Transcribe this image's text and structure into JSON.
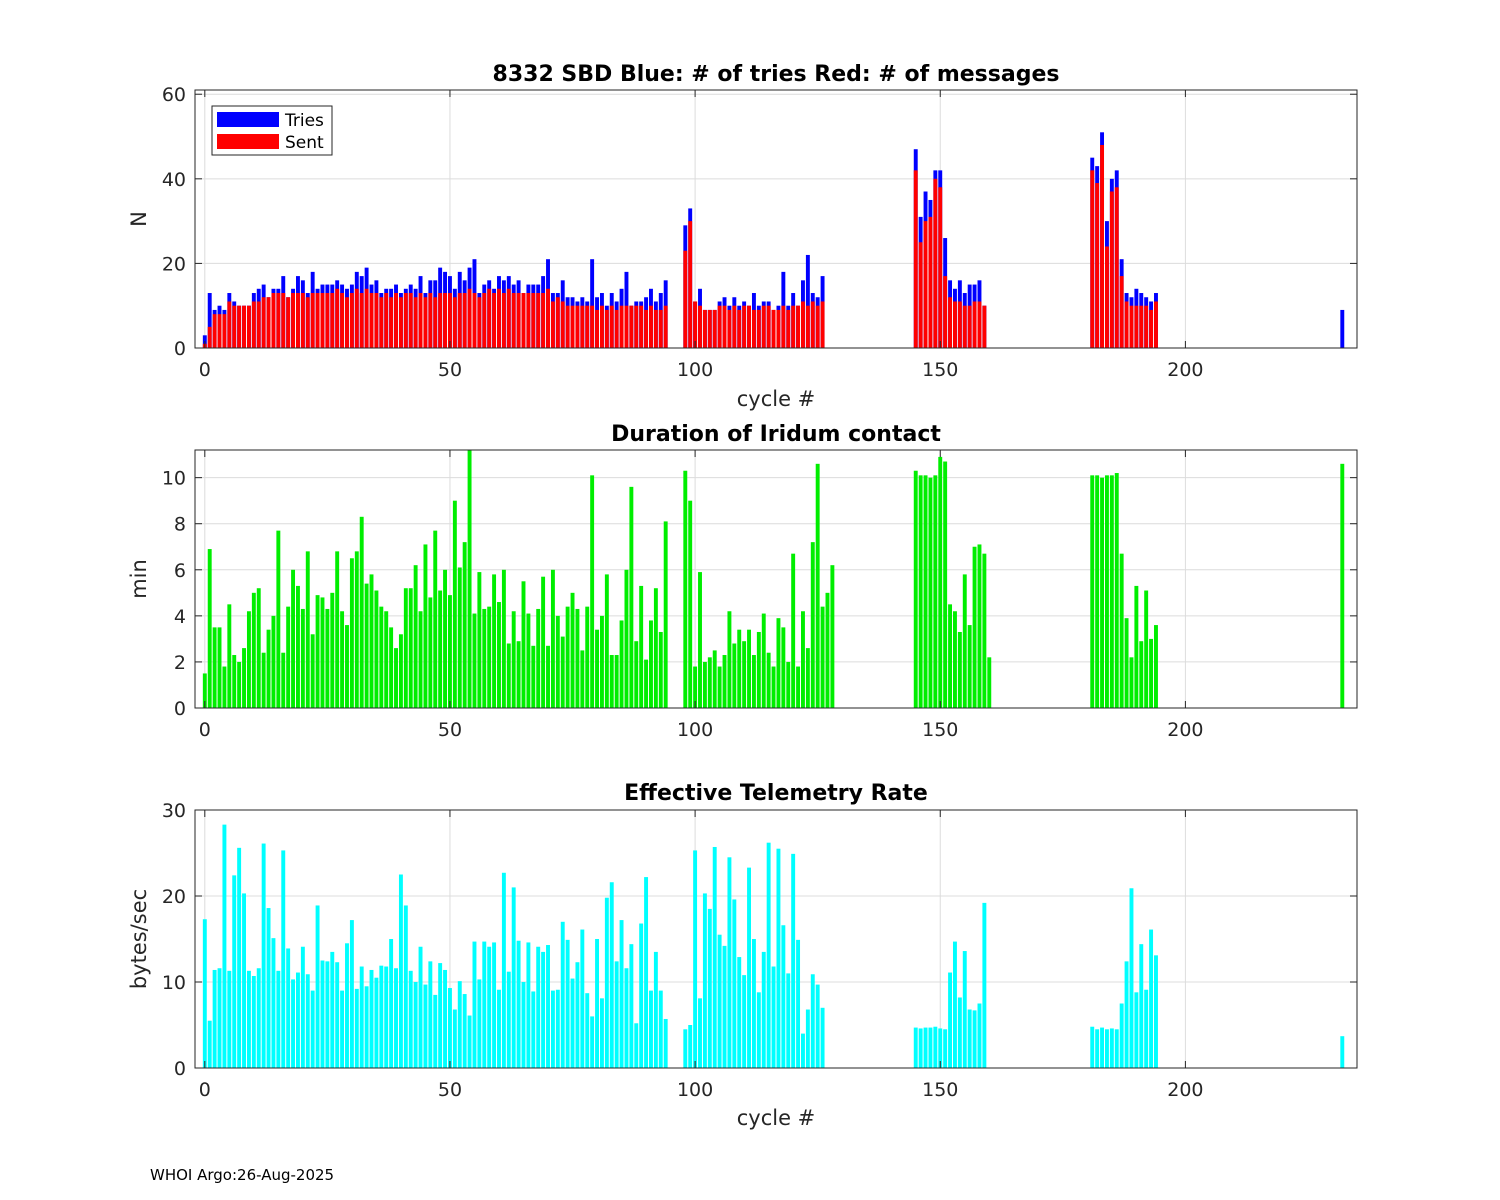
{
  "footer": "WHOI Argo:26-Aug-2025",
  "colors": {
    "tries": "#0000ff",
    "sent": "#ff0000",
    "duration": "#00ee00",
    "rate": "#00ffff",
    "grid": "#dcdcdc"
  },
  "chart_data": [
    {
      "type": "bar",
      "stacked": true,
      "title": "8332 SBD  Blue: # of tries   Red: # of messages",
      "xlabel": "cycle #",
      "ylabel": "N",
      "xlim": [
        -2,
        235
      ],
      "ylim": [
        0,
        61
      ],
      "xticks": [
        0,
        50,
        100,
        150,
        200
      ],
      "yticks": [
        0,
        20,
        40,
        60
      ],
      "grid": true,
      "legend": {
        "placement": "top-left",
        "entries": [
          "Tries",
          "Sent"
        ]
      },
      "series": [
        {
          "name": "Tries",
          "segments": [
            {
              "start": 0,
              "values": [
                3,
                13,
                9,
                10,
                9,
                13,
                11,
                10,
                10,
                10,
                13,
                14,
                15,
                12,
                14,
                14,
                17,
                12,
                14,
                17,
                16,
                13,
                18,
                14,
                15,
                15,
                15,
                16,
                15,
                14,
                15,
                18,
                17,
                19,
                15,
                16,
                13,
                14,
                14,
                15,
                13,
                14,
                15,
                14,
                17,
                13,
                16,
                16,
                19,
                18,
                17,
                14,
                18,
                16,
                19,
                21,
                13,
                15,
                16,
                14,
                17,
                16,
                17,
                15,
                16,
                13,
                15,
                15,
                15,
                17,
                21,
                13,
                13,
                16,
                12,
                12,
                11,
                12,
                11,
                21,
                12,
                13,
                10,
                13,
                11,
                14,
                18,
                10,
                11,
                11,
                12,
                14,
                11,
                13,
                16
              ]
            },
            {
              "start": 98,
              "values": [
                29,
                33,
                11,
                14,
                9,
                9,
                9,
                11,
                12,
                10,
                12,
                10,
                11,
                10,
                13,
                10,
                11,
                11,
                9,
                10,
                18,
                10,
                13,
                10,
                16,
                22,
                13,
                12,
                17
              ]
            },
            {
              "start": 145,
              "values": [
                47,
                31,
                37,
                35,
                42,
                42,
                26,
                16,
                14,
                16,
                13,
                15,
                15,
                16,
                10
              ]
            },
            {
              "start": 181,
              "values": [
                45,
                43,
                51,
                30,
                40,
                42,
                21,
                13,
                12,
                14,
                13,
                12,
                11,
                13
              ]
            },
            {
              "start": 232,
              "values": [
                9
              ]
            }
          ]
        },
        {
          "name": "Sent",
          "segments": [
            {
              "start": 0,
              "values": [
                1,
                5,
                8,
                8,
                8,
                11,
                10,
                10,
                10,
                10,
                11,
                11,
                12,
                12,
                13,
                13,
                13,
                12,
                13,
                13,
                13,
                12,
                13,
                13,
                13,
                13,
                13,
                14,
                13,
                12,
                13,
                14,
                13,
                14,
                13,
                13,
                12,
                13,
                12,
                13,
                12,
                13,
                13,
                12,
                13,
                12,
                13,
                12,
                13,
                13,
                13,
                12,
                13,
                13,
                14,
                13,
                12,
                13,
                14,
                13,
                14,
                13,
                14,
                13,
                13,
                13,
                13,
                13,
                13,
                13,
                14,
                11,
                12,
                11,
                10,
                10,
                10,
                10,
                10,
                10,
                9,
                10,
                9,
                10,
                9,
                10,
                10,
                10,
                10,
                10,
                9,
                10,
                9,
                9,
                10
              ]
            },
            {
              "start": 98,
              "values": [
                23,
                30,
                11,
                10,
                9,
                9,
                9,
                10,
                10,
                9,
                10,
                9,
                10,
                10,
                9,
                9,
                10,
                10,
                9,
                9,
                10,
                9,
                10,
                10,
                11,
                10,
                11,
                10,
                11
              ]
            },
            {
              "start": 145,
              "values": [
                42,
                25,
                30,
                31,
                40,
                38,
                17,
                12,
                11,
                11,
                10,
                10,
                11,
                11,
                10
              ]
            },
            {
              "start": 181,
              "values": [
                42,
                39,
                48,
                24,
                37,
                38,
                17,
                11,
                10,
                10,
                10,
                10,
                9,
                11
              ]
            },
            {
              "start": 232,
              "values": [
                0
              ]
            }
          ]
        }
      ]
    },
    {
      "type": "bar",
      "title": "Duration of Iridum contact",
      "xlabel": "",
      "ylabel": "min",
      "xlim": [
        -2,
        235
      ],
      "ylim": [
        0,
        11.2
      ],
      "xticks": [
        0,
        50,
        100,
        150,
        200
      ],
      "yticks": [
        0,
        2,
        4,
        6,
        8,
        10
      ],
      "grid": true,
      "series": [
        {
          "name": "",
          "segments": [
            {
              "start": 0,
              "values": [
                1.5,
                6.9,
                3.5,
                3.5,
                1.8,
                4.5,
                2.3,
                2.0,
                2.6,
                4.2,
                5.0,
                5.2,
                2.4,
                3.4,
                4.0,
                7.7,
                2.4,
                4.4,
                6.0,
                5.3,
                4.3,
                6.8,
                3.2,
                4.9,
                4.8,
                4.3,
                5.0,
                6.8,
                4.2,
                3.6,
                6.5,
                6.8,
                8.3,
                5.4,
                5.8,
                5.1,
                4.4,
                4.2,
                3.5,
                2.6,
                3.2,
                5.2,
                5.2,
                6.2,
                4.2,
                7.1,
                4.8,
                7.7,
                5.1,
                6.0,
                4.9,
                9.0,
                6.1,
                7.2,
                11.2,
                4.1,
                5.9,
                4.3,
                4.4,
                5.8,
                4.6,
                6.0,
                2.8,
                4.2,
                2.9,
                5.5,
                4.1,
                2.7,
                4.3,
                5.7,
                2.7,
                6.0,
                4.0,
                3.1,
                4.4,
                5.0,
                4.3,
                2.5,
                4.4,
                10.1,
                3.4,
                4.0,
                5.8,
                2.3,
                2.3,
                3.8,
                6.0,
                9.6,
                2.9,
                5.3,
                2.1,
                3.8,
                5.2,
                3.3,
                8.1
              ]
            },
            {
              "start": 98,
              "values": [
                10.3,
                9.0,
                1.8,
                5.9,
                2.0,
                2.2,
                2.5,
                1.8,
                2.3,
                4.2,
                2.8,
                3.4,
                2.9,
                3.4,
                2.3,
                3.3,
                4.1,
                2.4,
                1.8,
                3.9,
                3.5,
                2.0,
                6.7,
                1.8,
                4.2,
                2.6,
                7.2,
                10.6,
                4.4,
                5.0,
                6.2
              ]
            },
            {
              "start": 145,
              "values": [
                10.3,
                10.1,
                10.1,
                10.0,
                10.1,
                10.9,
                10.7,
                4.5,
                4.2,
                3.3,
                5.8,
                3.6,
                7.0,
                7.1,
                6.7,
                2.2
              ]
            },
            {
              "start": 181,
              "values": [
                10.1,
                10.1,
                10.0,
                10.1,
                10.1,
                10.2,
                6.7,
                3.9,
                2.2,
                5.3,
                2.9,
                5.1,
                3.0,
                3.6
              ]
            },
            {
              "start": 232,
              "values": [
                10.6
              ]
            }
          ]
        }
      ]
    },
    {
      "type": "bar",
      "title": "Effective Telemetry Rate",
      "xlabel": "cycle #",
      "ylabel": "bytes/sec",
      "xlim": [
        -2,
        235
      ],
      "ylim": [
        0,
        30
      ],
      "xticks": [
        0,
        50,
        100,
        150,
        200
      ],
      "yticks": [
        0,
        10,
        20,
        30
      ],
      "grid": true,
      "series": [
        {
          "name": "",
          "segments": [
            {
              "start": 0,
              "values": [
                17.3,
                5.5,
                11.4,
                11.6,
                28.3,
                11.3,
                22.4,
                25.6,
                20.3,
                11.3,
                10.7,
                11.6,
                26.1,
                18.6,
                15.1,
                11.3,
                25.3,
                13.9,
                10.3,
                11.1,
                14.1,
                10.9,
                9.0,
                18.9,
                12.5,
                12.4,
                13.5,
                12.3,
                9.0,
                14.5,
                17.2,
                9.2,
                11.8,
                9.5,
                11.4,
                10.5,
                11.9,
                11.8,
                15.0,
                11.6,
                22.5,
                18.9,
                11.3,
                10.0,
                14.1,
                9.7,
                12.4,
                8.5,
                12.2,
                11.4,
                9.3,
                6.8,
                10.1,
                8.6,
                6.1,
                14.7,
                10.3,
                14.7,
                14.1,
                14.6,
                9.1,
                22.7,
                11.2,
                21.0,
                14.8,
                10.0,
                14.6,
                8.9,
                14.1,
                13.5,
                14.3,
                9.0,
                9.1,
                17.0,
                14.9,
                10.4,
                12.3,
                16.1,
                8.7,
                6.0,
                15.0,
                8.1,
                19.8,
                21.6,
                12.4,
                17.2,
                11.6,
                14.4,
                5.2,
                16.8,
                22.2,
                9.0,
                13.5,
                9.0,
                5.7
              ]
            },
            {
              "start": 98,
              "values": [
                4.5,
                5.0,
                25.3,
                8.1,
                20.3,
                18.5,
                25.7,
                15.5,
                14.2,
                24.5,
                19.6,
                12.9,
                10.8,
                23.3,
                15.0,
                8.8,
                13.5,
                26.2,
                11.8,
                25.5,
                16.6,
                11.0,
                24.9,
                14.9,
                4.0,
                6.8,
                10.9,
                9.7,
                7.0
              ]
            },
            {
              "start": 145,
              "values": [
                4.7,
                4.6,
                4.7,
                4.7,
                4.8,
                4.6,
                4.5,
                11.1,
                14.7,
                8.2,
                13.6,
                6.8,
                6.7,
                7.5,
                19.2
              ]
            },
            {
              "start": 181,
              "values": [
                4.8,
                4.5,
                4.7,
                4.5,
                4.6,
                4.5,
                7.5,
                12.4,
                20.9,
                8.8,
                14.4,
                9.1,
                16.1,
                13.1
              ]
            },
            {
              "start": 232,
              "values": [
                3.7
              ]
            }
          ]
        }
      ]
    }
  ]
}
